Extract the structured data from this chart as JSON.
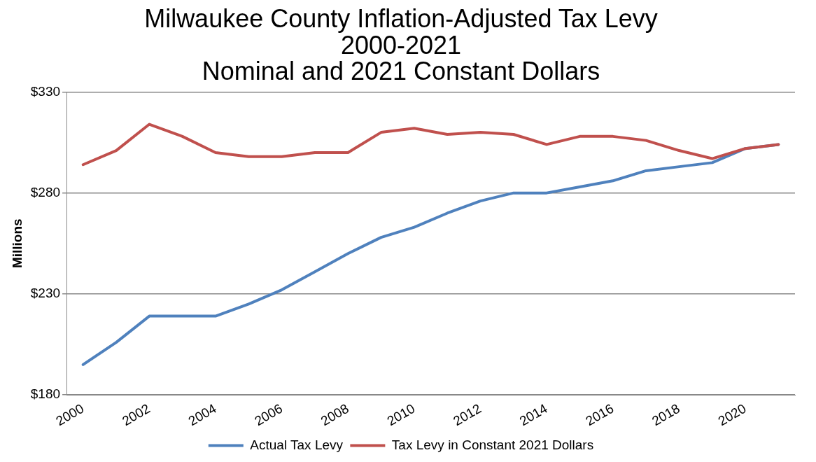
{
  "chart_data": {
    "type": "line",
    "title": "Milwaukee County Inflation-Adjusted Tax Levy\n2000-2021\nNominal and 2021 Constant Dollars",
    "ylabel": "Millions",
    "categories": [
      "2000",
      null,
      "2002",
      null,
      "2004",
      null,
      "2006",
      null,
      "2008",
      null,
      "2010",
      null,
      "2012",
      null,
      "2014",
      null,
      "2016",
      null,
      "2018",
      null,
      "2020",
      null
    ],
    "series": [
      {
        "name": "Actual Tax Levy",
        "color": "#4f81bd",
        "values": [
          195,
          206,
          219,
          219,
          219,
          225,
          232,
          241,
          250,
          258,
          263,
          270,
          276,
          280,
          280,
          283,
          286,
          291,
          293,
          295,
          302,
          304
        ]
      },
      {
        "name": "Tax Levy in Constant 2021 Dollars",
        "color": "#c0504d",
        "values": [
          294,
          301,
          314,
          308,
          300,
          298,
          298,
          300,
          300,
          310,
          312,
          309,
          310,
          309,
          304,
          308,
          308,
          306,
          301,
          297,
          302,
          304
        ]
      }
    ],
    "ylim": [
      180,
      330
    ],
    "yticks": [
      {
        "value": 180,
        "label": "$180"
      },
      {
        "value": 230,
        "label": "$230"
      },
      {
        "value": 280,
        "label": "$280"
      },
      {
        "value": 330,
        "label": "$330"
      }
    ],
    "grid": "y",
    "legend": "bottom",
    "marker": "none",
    "line_style": "solid"
  }
}
